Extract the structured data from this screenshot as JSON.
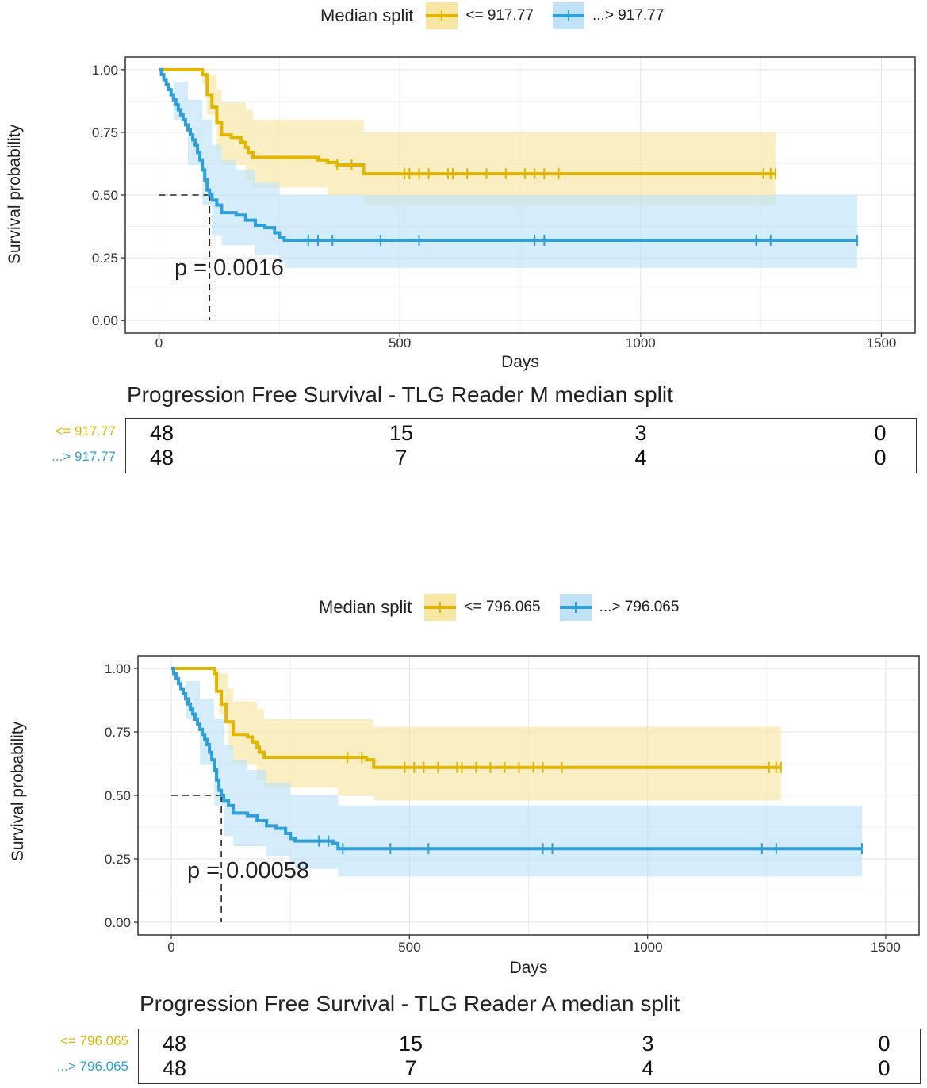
{
  "colors": {
    "low": "#e2b500",
    "low_band": "#f7e7a2",
    "high": "#2f9fd8",
    "high_band": "#bfe2f7"
  },
  "chart_data": [
    {
      "type": "line",
      "subtype": "kaplan-meier",
      "legend": {
        "title": "Median split",
        "items": [
          "<= 917.77",
          "...> 917.77"
        ]
      },
      "xlabel": "Days",
      "ylabel": "Survival probability",
      "xlim": [
        -70,
        1570
      ],
      "ylim": [
        -0.05,
        1.05
      ],
      "xticks": [
        "0",
        "500",
        "1000",
        "1500"
      ],
      "yticks": [
        "0.00",
        "0.25",
        "0.50",
        "0.75",
        "1.00"
      ],
      "p_value": "p = 0.0016",
      "median_line": {
        "x": 105,
        "y": 0.5
      },
      "series": [
        {
          "name": "<= 917.77",
          "steps": [
            [
              0,
              1.0
            ],
            [
              90,
              0.98
            ],
            [
              100,
              0.9
            ],
            [
              110,
              0.85
            ],
            [
              120,
              0.79
            ],
            [
              130,
              0.74
            ],
            [
              150,
              0.73
            ],
            [
              170,
              0.71
            ],
            [
              180,
              0.69
            ],
            [
              185,
              0.67
            ],
            [
              195,
              0.65
            ],
            [
              300,
              0.65
            ],
            [
              330,
              0.64
            ],
            [
              350,
              0.63
            ],
            [
              360,
              0.63
            ],
            [
              370,
              0.62
            ],
            [
              420,
              0.62
            ],
            [
              425,
              0.585
            ],
            [
              1280,
              0.585
            ]
          ],
          "upper": [
            [
              0,
              1.0
            ],
            [
              90,
              1.0
            ],
            [
              100,
              0.98
            ],
            [
              120,
              0.92
            ],
            [
              130,
              0.87
            ],
            [
              180,
              0.84
            ],
            [
              195,
              0.8
            ],
            [
              420,
              0.8
            ],
            [
              425,
              0.75
            ],
            [
              1280,
              0.75
            ]
          ],
          "lower": [
            [
              0,
              1.0
            ],
            [
              90,
              0.94
            ],
            [
              100,
              0.82
            ],
            [
              120,
              0.68
            ],
            [
              130,
              0.62
            ],
            [
              180,
              0.56
            ],
            [
              195,
              0.53
            ],
            [
              350,
              0.5
            ],
            [
              420,
              0.49
            ],
            [
              425,
              0.46
            ],
            [
              1280,
              0.46
            ]
          ],
          "censor": [
            370,
            400,
            510,
            520,
            540,
            560,
            600,
            610,
            640,
            680,
            720,
            760,
            780,
            800,
            830,
            1255,
            1270,
            1280
          ]
        },
        {
          "name": "...> 917.77",
          "steps": [
            [
              0,
              1.0
            ],
            [
              5,
              0.98
            ],
            [
              10,
              0.96
            ],
            [
              15,
              0.94
            ],
            [
              20,
              0.92
            ],
            [
              25,
              0.9
            ],
            [
              30,
              0.88
            ],
            [
              35,
              0.86
            ],
            [
              40,
              0.84
            ],
            [
              45,
              0.82
            ],
            [
              50,
              0.8
            ],
            [
              55,
              0.78
            ],
            [
              60,
              0.76
            ],
            [
              65,
              0.74
            ],
            [
              70,
              0.72
            ],
            [
              75,
              0.7
            ],
            [
              80,
              0.67
            ],
            [
              85,
              0.64
            ],
            [
              90,
              0.6
            ],
            [
              95,
              0.56
            ],
            [
              100,
              0.52
            ],
            [
              105,
              0.5
            ],
            [
              110,
              0.48
            ],
            [
              120,
              0.46
            ],
            [
              130,
              0.43
            ],
            [
              160,
              0.42
            ],
            [
              180,
              0.4
            ],
            [
              200,
              0.38
            ],
            [
              220,
              0.37
            ],
            [
              240,
              0.35
            ],
            [
              250,
              0.33
            ],
            [
              260,
              0.32
            ],
            [
              1450,
              0.32
            ]
          ],
          "upper": [
            [
              0,
              1.0
            ],
            [
              30,
              0.95
            ],
            [
              60,
              0.88
            ],
            [
              90,
              0.8
            ],
            [
              110,
              0.7
            ],
            [
              130,
              0.64
            ],
            [
              160,
              0.6
            ],
            [
              200,
              0.55
            ],
            [
              250,
              0.5
            ],
            [
              1450,
              0.49
            ]
          ],
          "lower": [
            [
              0,
              1.0
            ],
            [
              30,
              0.8
            ],
            [
              60,
              0.62
            ],
            [
              90,
              0.46
            ],
            [
              110,
              0.34
            ],
            [
              130,
              0.3
            ],
            [
              200,
              0.26
            ],
            [
              250,
              0.23
            ],
            [
              260,
              0.21
            ],
            [
              1450,
              0.21
            ]
          ],
          "censor": [
            310,
            330,
            360,
            460,
            540,
            780,
            800,
            1240,
            1270,
            1450
          ]
        }
      ],
      "table": {
        "title": "Progression Free Survival -  TLG Reader M  median split",
        "rows": [
          {
            "label": "<= 917.77",
            "counts": [
              "48",
              "15",
              "3",
              "0"
            ]
          },
          {
            "label": "...> 917.77",
            "counts": [
              "48",
              "7",
              "4",
              "0"
            ]
          }
        ]
      }
    },
    {
      "type": "line",
      "subtype": "kaplan-meier",
      "legend": {
        "title": "Median split",
        "items": [
          "<= 796.065",
          "...> 796.065"
        ]
      },
      "xlabel": "Days",
      "ylabel": "Survival probability",
      "xlim": [
        -70,
        1570
      ],
      "ylim": [
        -0.05,
        1.05
      ],
      "xticks": [
        "0",
        "500",
        "1000",
        "1500"
      ],
      "yticks": [
        "0.00",
        "0.25",
        "0.50",
        "0.75",
        "1.00"
      ],
      "p_value": "p = 0.00058",
      "median_line": {
        "x": 105,
        "y": 0.5
      },
      "series": [
        {
          "name": "<= 796.065",
          "steps": [
            [
              0,
              1.0
            ],
            [
              90,
              0.98
            ],
            [
              95,
              0.91
            ],
            [
              105,
              0.86
            ],
            [
              115,
              0.79
            ],
            [
              130,
              0.74
            ],
            [
              160,
              0.73
            ],
            [
              170,
              0.71
            ],
            [
              180,
              0.69
            ],
            [
              185,
              0.67
            ],
            [
              195,
              0.65
            ],
            [
              300,
              0.65
            ],
            [
              330,
              0.65
            ],
            [
              380,
              0.65
            ],
            [
              410,
              0.64
            ],
            [
              420,
              0.64
            ],
            [
              425,
              0.61
            ],
            [
              1280,
              0.61
            ]
          ],
          "upper": [
            [
              0,
              1.0
            ],
            [
              90,
              1.0
            ],
            [
              100,
              0.98
            ],
            [
              120,
              0.92
            ],
            [
              130,
              0.87
            ],
            [
              180,
              0.84
            ],
            [
              195,
              0.8
            ],
            [
              420,
              0.8
            ],
            [
              425,
              0.77
            ],
            [
              1280,
              0.77
            ]
          ],
          "lower": [
            [
              0,
              1.0
            ],
            [
              90,
              0.94
            ],
            [
              100,
              0.82
            ],
            [
              120,
              0.68
            ],
            [
              130,
              0.62
            ],
            [
              180,
              0.56
            ],
            [
              195,
              0.53
            ],
            [
              350,
              0.5
            ],
            [
              420,
              0.5
            ],
            [
              425,
              0.48
            ],
            [
              1280,
              0.48
            ]
          ],
          "censor": [
            370,
            400,
            490,
            510,
            530,
            560,
            600,
            610,
            640,
            670,
            700,
            730,
            760,
            780,
            820,
            1255,
            1270,
            1280
          ]
        },
        {
          "name": "...> 796.065",
          "steps": [
            [
              0,
              1.0
            ],
            [
              5,
              0.98
            ],
            [
              10,
              0.96
            ],
            [
              15,
              0.94
            ],
            [
              20,
              0.92
            ],
            [
              25,
              0.9
            ],
            [
              30,
              0.88
            ],
            [
              35,
              0.86
            ],
            [
              40,
              0.84
            ],
            [
              45,
              0.82
            ],
            [
              50,
              0.8
            ],
            [
              55,
              0.78
            ],
            [
              60,
              0.76
            ],
            [
              65,
              0.74
            ],
            [
              70,
              0.72
            ],
            [
              75,
              0.7
            ],
            [
              80,
              0.67
            ],
            [
              85,
              0.64
            ],
            [
              90,
              0.6
            ],
            [
              95,
              0.56
            ],
            [
              100,
              0.52
            ],
            [
              105,
              0.5
            ],
            [
              110,
              0.48
            ],
            [
              120,
              0.46
            ],
            [
              130,
              0.43
            ],
            [
              160,
              0.42
            ],
            [
              180,
              0.4
            ],
            [
              200,
              0.38
            ],
            [
              220,
              0.37
            ],
            [
              240,
              0.35
            ],
            [
              250,
              0.33
            ],
            [
              260,
              0.32
            ],
            [
              340,
              0.31
            ],
            [
              350,
              0.29
            ],
            [
              1450,
              0.29
            ]
          ],
          "upper": [
            [
              0,
              1.0
            ],
            [
              30,
              0.95
            ],
            [
              60,
              0.88
            ],
            [
              90,
              0.8
            ],
            [
              110,
              0.7
            ],
            [
              130,
              0.64
            ],
            [
              160,
              0.6
            ],
            [
              200,
              0.55
            ],
            [
              250,
              0.5
            ],
            [
              350,
              0.46
            ],
            [
              1450,
              0.46
            ]
          ],
          "lower": [
            [
              0,
              1.0
            ],
            [
              30,
              0.8
            ],
            [
              60,
              0.62
            ],
            [
              90,
              0.46
            ],
            [
              110,
              0.34
            ],
            [
              130,
              0.3
            ],
            [
              200,
              0.26
            ],
            [
              250,
              0.23
            ],
            [
              260,
              0.21
            ],
            [
              350,
              0.18
            ],
            [
              1450,
              0.18
            ]
          ],
          "censor": [
            310,
            330,
            360,
            460,
            540,
            780,
            800,
            1240,
            1270,
            1450
          ]
        }
      ],
      "table": {
        "title": "Progression Free Survival -   TLG Reader A  median split",
        "rows": [
          {
            "label": "<= 796.065",
            "counts": [
              "48",
              "15",
              "3",
              "0"
            ]
          },
          {
            "label": "...> 796.065",
            "counts": [
              "48",
              "7",
              "4",
              "0"
            ]
          }
        ]
      }
    }
  ]
}
